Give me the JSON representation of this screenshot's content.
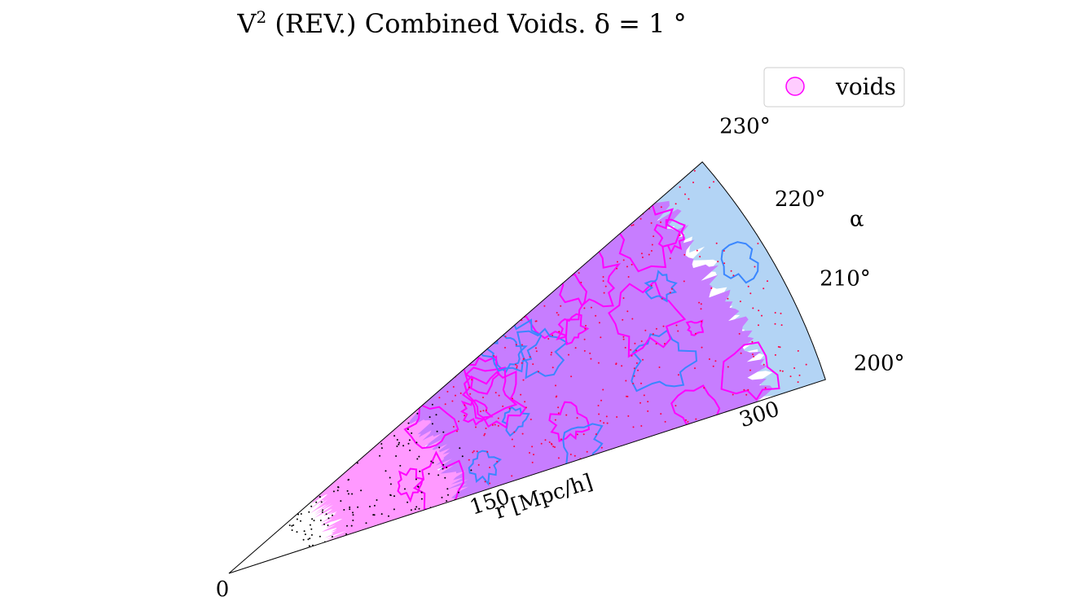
{
  "chart_data": {
    "type": "wedge-map",
    "title": "V² (REV.) Combined Voids.  δ = 1 °",
    "angular_axis": {
      "label": "α",
      "unit": "°",
      "min": 200,
      "max": 230,
      "ticks": [
        "200°",
        "210°",
        "220°",
        "230°"
      ]
    },
    "radial_axis": {
      "label": "r [Mpc/h]",
      "min": 0,
      "max": 332,
      "ticks": [
        "0",
        "150",
        "300"
      ]
    },
    "legend": {
      "placement": "top-right",
      "entries": [
        {
          "label": "voids",
          "color": "#ff00ff"
        }
      ]
    },
    "colors": {
      "void_fill": "#c77dff",
      "void_fill_light": "#ff99ff",
      "void_edge_magenta": "#ff00ff",
      "void_edge_blue": "#3a86ff",
      "wall_fill": "#b3d4f5",
      "galaxy_void": "#ff0044",
      "galaxy_wall": "#000000"
    }
  }
}
